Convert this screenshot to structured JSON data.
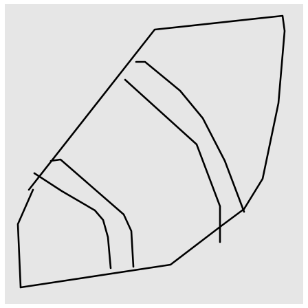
{
  "colors": {
    "background": "#e6e6e6",
    "border": "#ffffff",
    "ink": "#000000"
  },
  "content": {
    "description_visible_text": ""
  }
}
